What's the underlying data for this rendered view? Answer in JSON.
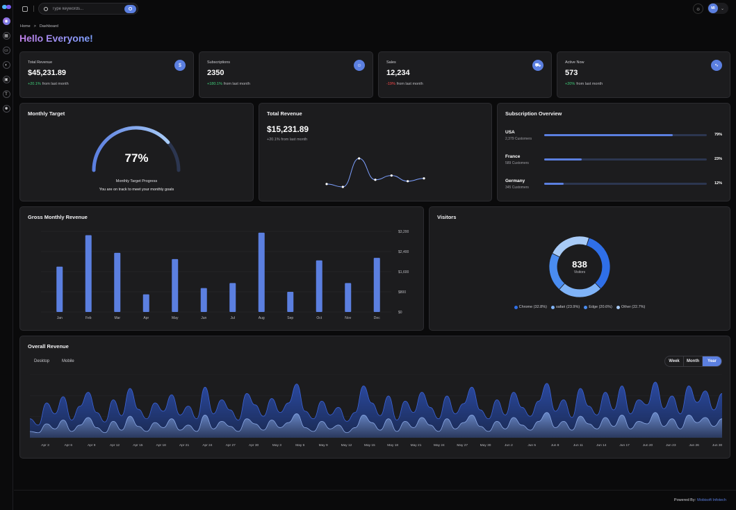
{
  "colors": {
    "accent": "#5b7fe0",
    "positive": "#3fd07a",
    "negative": "#ff4a4a",
    "card": "#1c1c1e",
    "background": "#0a0a0b"
  },
  "sidebar": {
    "items": [
      {
        "icon": "dashboard-icon",
        "active": true
      },
      {
        "icon": "grid-icon"
      },
      {
        "icon": "card-icon"
      },
      {
        "icon": "toggle-icon"
      },
      {
        "icon": "calendar-icon"
      },
      {
        "icon": "text-icon"
      },
      {
        "icon": "settings-icon"
      }
    ]
  },
  "header": {
    "search_placeholder": "Type keywords...",
    "avatar_initials": "MI"
  },
  "breadcrumb": {
    "home": "Home",
    "separator": ">",
    "current": "Dashboard"
  },
  "page_title": "Hello Everyone!",
  "stats": [
    {
      "label": "Total Revenue",
      "value": "$45,231.89",
      "delta": "+20.1%",
      "delta_text": "from last month",
      "trend": "positive",
      "icon": "dollar-icon"
    },
    {
      "label": "Subscriptions",
      "value": "2350",
      "delta": "+180.1%",
      "delta_text": "from last month",
      "trend": "positive",
      "icon": "users-icon"
    },
    {
      "label": "Sales",
      "value": "12,234",
      "delta": "-19%",
      "delta_text": "from last month",
      "trend": "negative",
      "icon": "cart-icon"
    },
    {
      "label": "Active Now",
      "value": "573",
      "delta": "+20%",
      "delta_text": "from last month",
      "trend": "positive",
      "icon": "activity-icon"
    }
  ],
  "monthly_target": {
    "title": "Monthly Target",
    "percent": "77%",
    "progress": 0.77,
    "caption": "Monthly Target Progress",
    "message": "You are on track to meet your monthly goals"
  },
  "total_revenue": {
    "title": "Total Revenue",
    "value": "$15,231.89",
    "delta": "+20.1% from last month"
  },
  "subscription_overview": {
    "title": "Subscription Overview",
    "rows": [
      {
        "country": "USA",
        "customers": "2,379 Customers",
        "percent": "79%",
        "value": 0.79
      },
      {
        "country": "France",
        "customers": "589 Customers",
        "percent": "23%",
        "value": 0.23
      },
      {
        "country": "Germany",
        "customers": "345 Customers",
        "percent": "12%",
        "value": 0.12
      }
    ]
  },
  "gross_monthly_revenue": {
    "title": "Gross Monthly Revenue"
  },
  "visitors": {
    "title": "Visitors",
    "total": "838",
    "caption": "Visitors",
    "legend": [
      {
        "label": "Chrome (32.8%)",
        "color": "#2f6fe8"
      },
      {
        "label": "safari (23.9%)",
        "color": "#7fb3f7"
      },
      {
        "label": "Edge (20.6%)",
        "color": "#4a8cf0"
      },
      {
        "label": "Other (22.7%)",
        "color": "#a8cbf7"
      }
    ]
  },
  "overall_revenue": {
    "title": "Overall Revenue",
    "device_tabs": [
      "Desktop",
      "Mobile"
    ],
    "range_buttons": [
      "Week",
      "Month",
      "Year"
    ],
    "selected_range": "Year"
  },
  "footer": {
    "prefix": "Powered By:",
    "brand": "Mobisoft Infotech"
  },
  "chart_data": [
    {
      "type": "line",
      "title": "Total Revenue",
      "x": [
        1,
        2,
        3,
        4,
        5,
        6,
        7
      ],
      "values": [
        10,
        0,
        100,
        25,
        40,
        20,
        30
      ]
    },
    {
      "type": "bar",
      "title": "Gross Monthly Revenue",
      "categories": [
        "Jan",
        "Feb",
        "Mar",
        "Apr",
        "May",
        "Jun",
        "Jul",
        "Aug",
        "Sep",
        "Oct",
        "Nov",
        "Dec"
      ],
      "values": [
        1800,
        3050,
        2350,
        700,
        2100,
        950,
        1150,
        3150,
        800,
        2050,
        1150,
        2150
      ],
      "yticks": [
        "$0",
        "$800",
        "$1,600",
        "$2,400",
        "$3,200"
      ],
      "ylim": [
        0,
        3200
      ]
    },
    {
      "type": "pie",
      "title": "Visitors",
      "labels": [
        "Chrome",
        "safari",
        "Edge",
        "Other"
      ],
      "values": [
        32.8,
        23.9,
        20.6,
        22.7
      ]
    },
    {
      "type": "area",
      "title": "Overall Revenue",
      "xticks": [
        "Apr 3",
        "Apr 6",
        "Apr 9",
        "Apr 12",
        "Apr 15",
        "Apr 18",
        "Apr 21",
        "Apr 24",
        "Apr 27",
        "Apr 30",
        "May 3",
        "May 6",
        "May 9",
        "May 12",
        "May 15",
        "May 18",
        "May 21",
        "May 24",
        "May 27",
        "May 30",
        "Jun 2",
        "Jun 5",
        "Jun 8",
        "Jun 11",
        "Jun 14",
        "Jun 17",
        "Jun 20",
        "Jun 23",
        "Jun 26",
        "Jun 30"
      ],
      "series": [
        {
          "name": "Desktop",
          "values": [
            30,
            20,
            55,
            38,
            65,
            28,
            50,
            72,
            40,
            25,
            60,
            35,
            78,
            45,
            30,
            55,
            42,
            68,
            36,
            50,
            30,
            80,
            38,
            60,
            44,
            28,
            70,
            52,
            34,
            62,
            40,
            55,
            85,
            42,
            30,
            58,
            36,
            48,
            26,
            40,
            82,
            55,
            35,
            66,
            28,
            58,
            40,
            72,
            48,
            30,
            66,
            38,
            54,
            80,
            44,
            30,
            60,
            36,
            72,
            48,
            34,
            58,
            86,
            42,
            60,
            32,
            78,
            50,
            36,
            72,
            44,
            82,
            38,
            60,
            52,
            88,
            46,
            66,
            38,
            82,
            56,
            74,
            44,
            70
          ]
        },
        {
          "name": "Mobile",
          "values": [
            10,
            8,
            22,
            14,
            28,
            10,
            20,
            32,
            16,
            8,
            26,
            12,
            34,
            18,
            10,
            24,
            16,
            30,
            12,
            20,
            10,
            36,
            14,
            26,
            18,
            10,
            30,
            22,
            12,
            28,
            16,
            24,
            38,
            16,
            10,
            26,
            14,
            20,
            8,
            16,
            36,
            24,
            12,
            30,
            10,
            26,
            16,
            32,
            20,
            10,
            30,
            14,
            24,
            36,
            18,
            10,
            26,
            14,
            32,
            20,
            12,
            26,
            40,
            16,
            26,
            12,
            34,
            22,
            14,
            32,
            18,
            36,
            14,
            26,
            22,
            40,
            18,
            30,
            14,
            36,
            24,
            32,
            18,
            30
          ]
        }
      ]
    }
  ]
}
